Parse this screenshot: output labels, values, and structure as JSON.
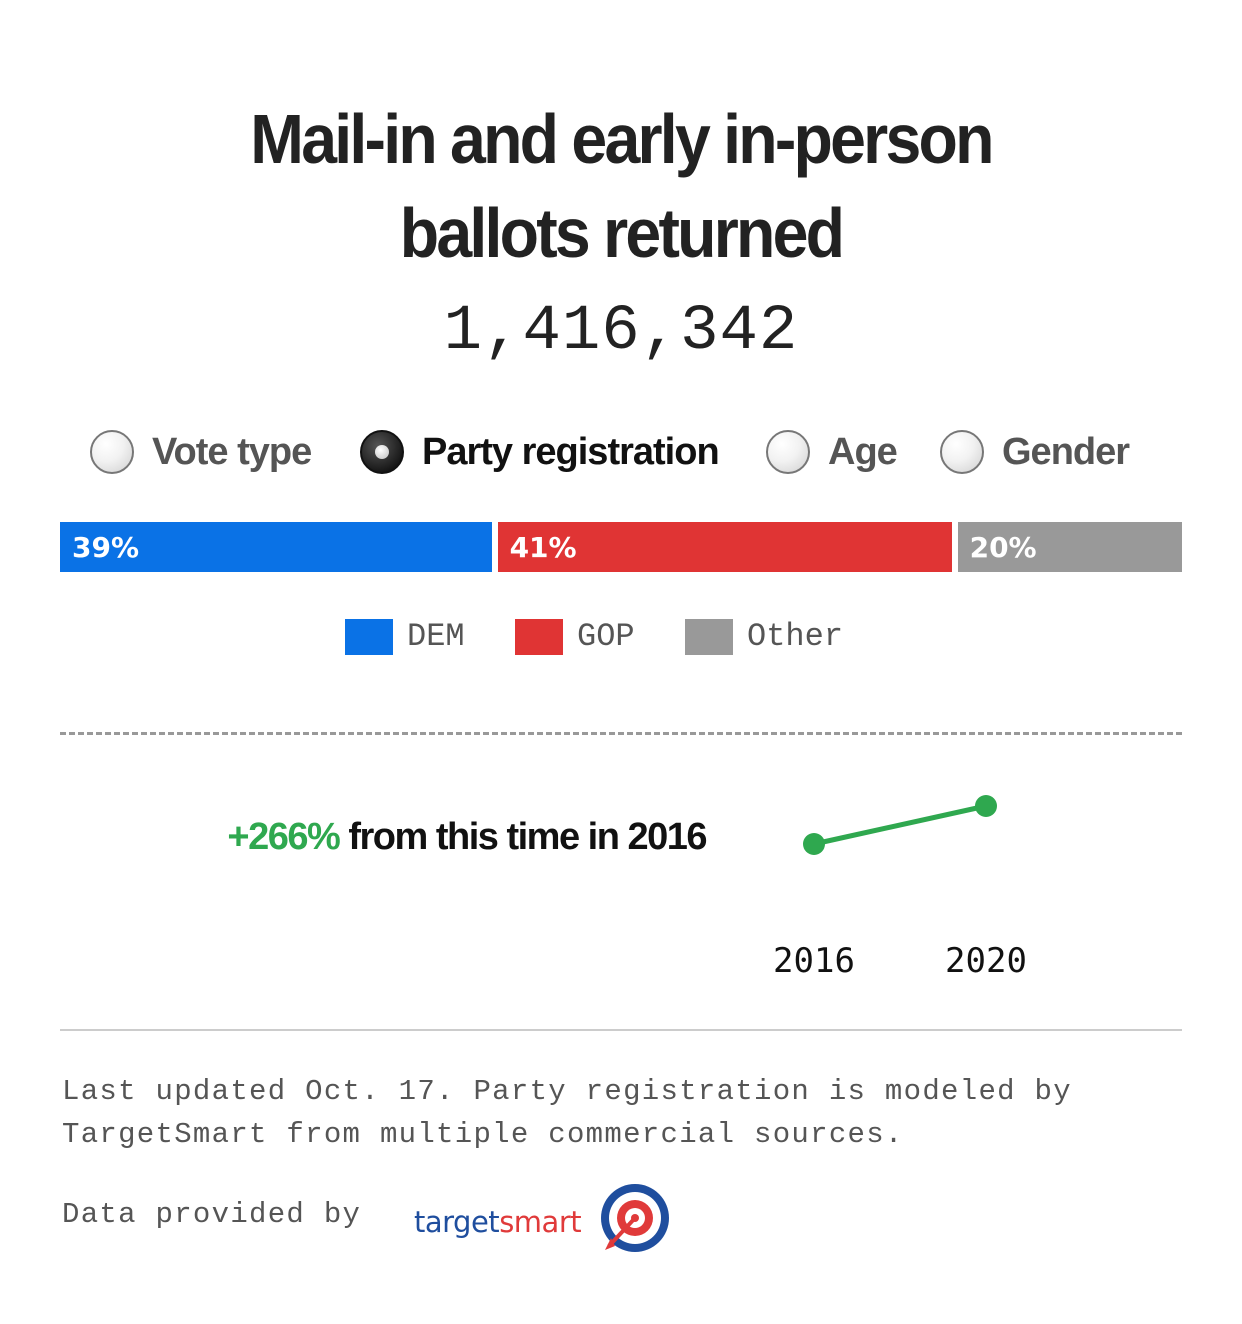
{
  "title_line1": "Mail-in and early in-person",
  "title_line2": "ballots returned",
  "total": "1,416,342",
  "filters": [
    {
      "label": "Vote type",
      "selected": false
    },
    {
      "label": "Party registration",
      "selected": true
    },
    {
      "label": "Age",
      "selected": false
    },
    {
      "label": "Gender",
      "selected": false
    }
  ],
  "chart_data": [
    {
      "type": "bar",
      "orientation": "horizontal-stacked",
      "categories": [
        "DEM",
        "GOP",
        "Other"
      ],
      "values": [
        39,
        41,
        20
      ],
      "value_labels": [
        "39%",
        "41%",
        "20%"
      ],
      "colors": [
        "#0a72e6",
        "#e03434",
        "#999999"
      ],
      "legend": [
        "DEM",
        "GOP",
        "Other"
      ],
      "legend_position": "bottom"
    },
    {
      "type": "line",
      "x": [
        "2016",
        "2020"
      ],
      "y": [
        1,
        3.66
      ],
      "color": "#2fa84f",
      "annotation_pct": "+266%",
      "annotation_text": "from this time in 2016"
    }
  ],
  "note_line1": "Last updated Oct. 17. Party registration is modeled by",
  "note_line2": "TargetSmart from multiple commercial sources.",
  "provided_by": "Data provided by",
  "logo": {
    "part1": "target",
    "part2": "smart",
    "icon": "target-bullseye-icon"
  }
}
